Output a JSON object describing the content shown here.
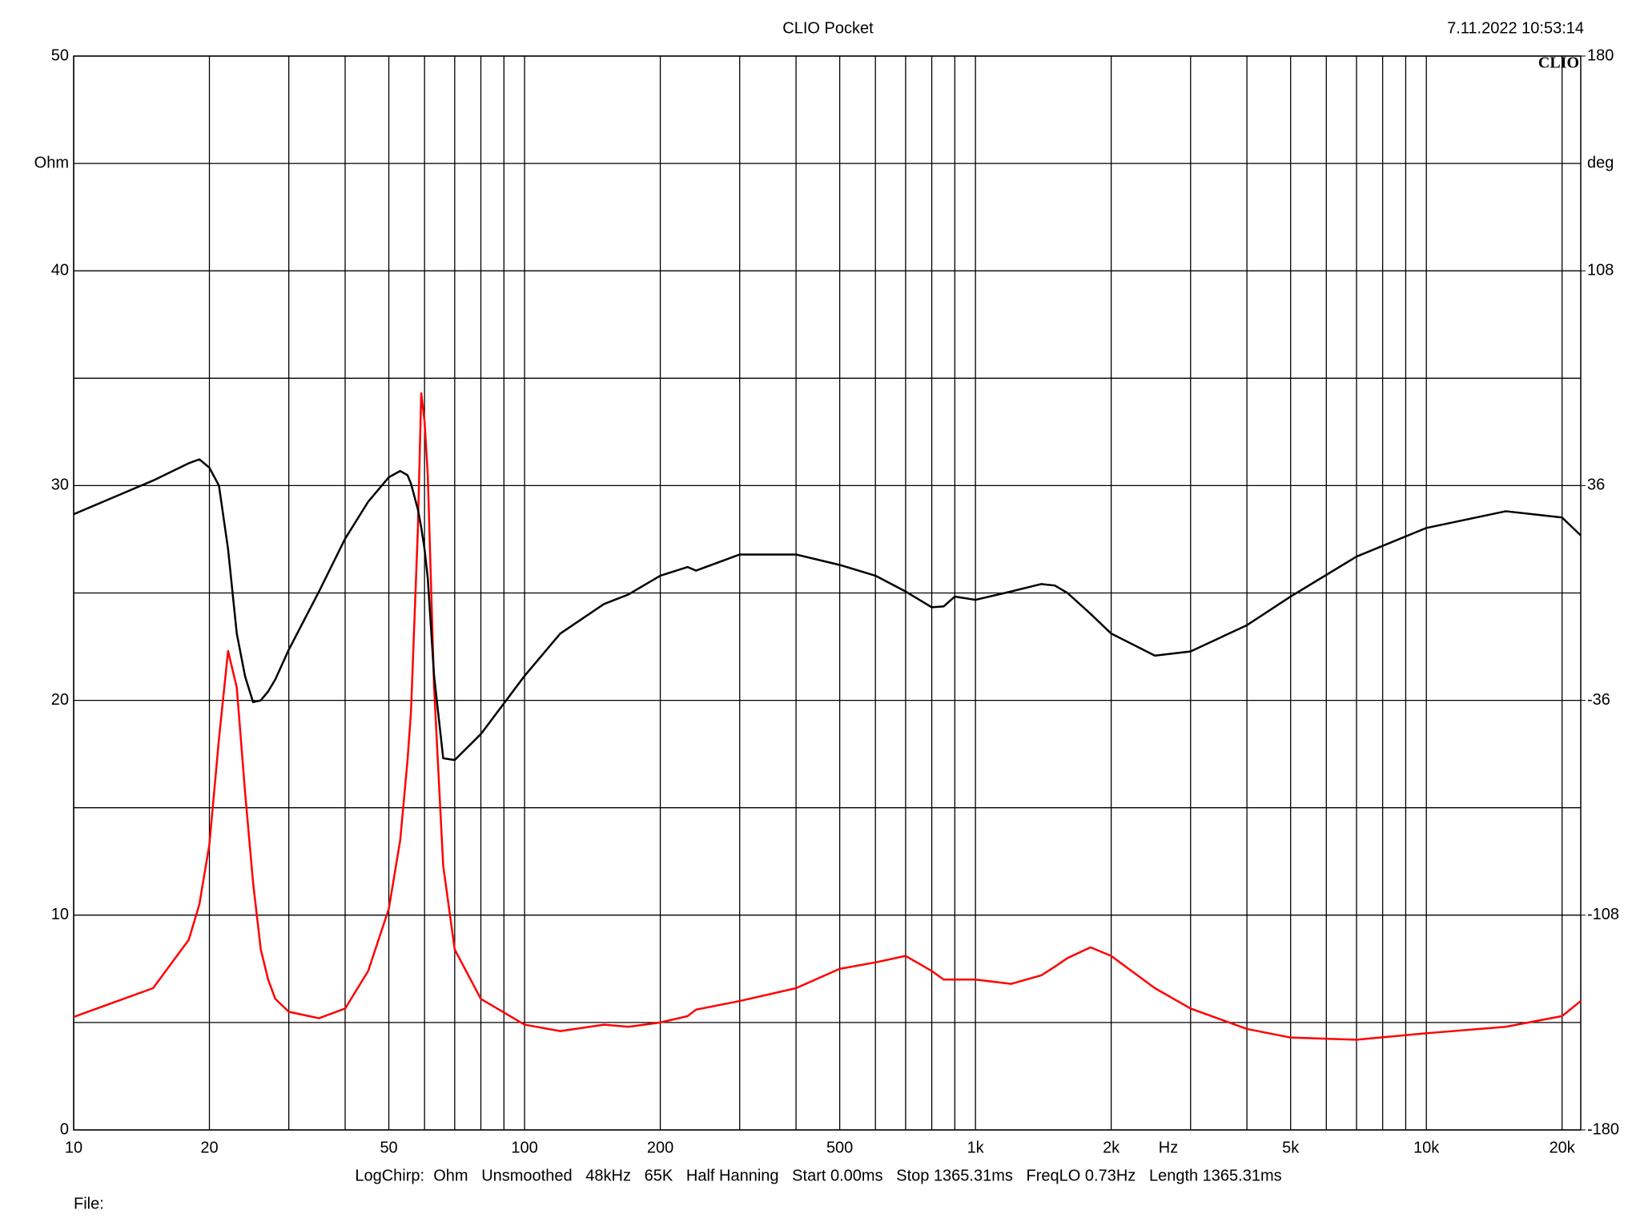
{
  "chart_data": {
    "type": "line",
    "title": "CLIO Pocket",
    "timestamp": "7.11.2022 10:53:14",
    "logo": "CLIO",
    "y_label": "Ohm",
    "y2_label": "deg",
    "x_label": "Hz",
    "footer": "LogChirp:  Ohm   Unsmoothed   48kHz   65K   Half Hanning   Start 0.00ms   Stop 1365.31ms   FreqLO 0.73Hz   Length 1365.31ms",
    "file_label": "File:",
    "x_scale": "log",
    "grid": true,
    "xlim": [
      10,
      22000
    ],
    "xticks": [
      10,
      20,
      50,
      100,
      200,
      500,
      {
        "value": 1000,
        "label": "1k"
      },
      {
        "value": 2000,
        "label": "2k"
      },
      {
        "value": 5000,
        "label": "5k"
      },
      {
        "value": 10000,
        "label": "10k"
      },
      {
        "value": 20000,
        "label": "20k"
      }
    ],
    "x_grid": [
      30,
      40,
      60,
      70,
      80,
      90,
      300,
      400,
      600,
      700,
      800,
      900,
      3000,
      4000,
      6000,
      7000,
      8000,
      9000
    ],
    "ylim": [
      0,
      50
    ],
    "yticks": [
      0,
      10,
      20,
      30,
      40,
      50
    ],
    "y_grid": [
      5,
      15,
      25,
      35,
      45
    ],
    "y2lim": [
      -180,
      180
    ],
    "y2ticks": [
      -180,
      -108,
      -36,
      36,
      108,
      180
    ],
    "x": [
      10,
      15,
      18,
      19,
      20,
      21,
      22,
      23,
      24,
      25,
      26,
      27,
      28,
      30,
      35,
      40,
      45,
      50,
      53,
      55,
      56,
      58,
      59,
      60,
      61,
      63,
      66,
      70,
      80,
      100,
      120,
      150,
      170,
      200,
      230,
      240,
      300,
      400,
      500,
      600,
      700,
      800,
      850,
      900,
      1000,
      1200,
      1400,
      1500,
      1600,
      1800,
      2000,
      2500,
      3000,
      4000,
      5000,
      7000,
      10000,
      15000,
      20000,
      22000
    ],
    "series": [
      {
        "color": "#ff0000",
        "values": [
          5.26,
          6.6,
          8.85,
          10.5,
          13.3,
          18.2,
          22.3,
          20.6,
          15.7,
          11.5,
          8.4,
          7,
          6.1,
          5.5,
          5.2,
          5.65,
          7.4,
          10.3,
          13.5,
          17.2,
          19.5,
          28,
          34.3,
          33,
          30.5,
          20.6,
          12.3,
          8.4,
          6.1,
          4.9,
          4.6,
          4.9,
          4.8,
          5.0,
          5.3,
          5.6,
          6.0,
          6.6,
          7.5,
          7.8,
          8.1,
          7.4,
          7.0,
          7.0,
          7.0,
          6.8,
          7.2,
          7.6,
          8.0,
          8.5,
          8.1,
          6.6,
          5.65,
          4.7,
          4.3,
          4.2,
          4.5,
          4.8,
          5.3,
          6.0
        ]
      },
      {
        "color": "#000000",
        "axis": "y2",
        "values": [
          26.4,
          37.7,
          43.5,
          44.8,
          42,
          36,
          14.7,
          -13.6,
          -28,
          -36.6,
          -36,
          -33,
          -29,
          -19,
          0.5,
          18.2,
          30.6,
          38.8,
          40.9,
          39.5,
          36.6,
          28,
          22,
          14.7,
          5,
          -27.8,
          -55.4,
          -56,
          -47.3,
          -27.8,
          -13.6,
          -3.7,
          -0.5,
          5.8,
          8.7,
          7.5,
          12.9,
          12.9,
          9.4,
          5.8,
          0.5,
          -4.8,
          -4.5,
          -1.2,
          -2.3,
          0.5,
          3,
          2.5,
          0,
          -7,
          -13.6,
          -21,
          -19.6,
          -10.8,
          -1.2,
          12.2,
          21.8,
          27.4,
          25.3,
          19.3
        ]
      }
    ]
  }
}
